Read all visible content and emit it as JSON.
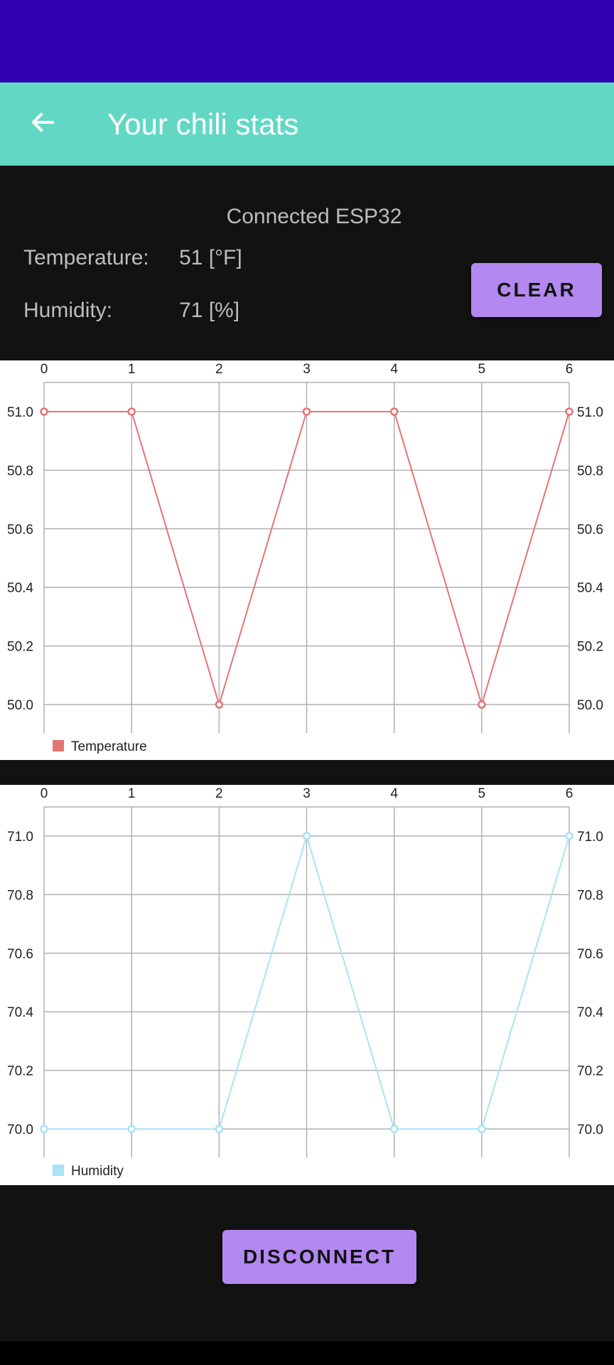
{
  "app_bar": {
    "title": "Your chili stats",
    "back_icon": "arrow-left-icon"
  },
  "status": {
    "connection": "Connected ESP32",
    "temperature_label": "Temperature:",
    "temperature_value": "51 [°F]",
    "humidity_label": "Humidity:",
    "humidity_value": "71 [%]"
  },
  "buttons": {
    "clear": "CLEAR",
    "disconnect": "DISCONNECT"
  },
  "colors": {
    "status_bar": "#3300b3",
    "app_bar": "#62d8c4",
    "background": "#121212",
    "button": "#b388f0",
    "temperature_series": "#e57373",
    "humidity_series": "#a6e4f6"
  },
  "chart_data": [
    {
      "type": "line",
      "x": [
        0,
        1,
        2,
        3,
        4,
        5,
        6
      ],
      "series": [
        {
          "name": "Temperature",
          "values": [
            51,
            51,
            50,
            51,
            51,
            50,
            51
          ],
          "color": "#e57373"
        }
      ],
      "y_ticks": [
        "50.0",
        "50.2",
        "50.4",
        "50.6",
        "50.8",
        "51.0"
      ],
      "ylim": [
        50.0,
        51.0
      ],
      "x_axis_position": "top",
      "y_axis_labels": "left and right",
      "grid": true,
      "legend": "bottom-left"
    },
    {
      "type": "line",
      "x": [
        0,
        1,
        2,
        3,
        4,
        5,
        6
      ],
      "series": [
        {
          "name": "Humidity",
          "values": [
            70,
            70,
            70,
            71,
            70,
            70,
            71
          ],
          "color": "#a6e4f6"
        }
      ],
      "y_ticks": [
        "70.0",
        "70.2",
        "70.4",
        "70.6",
        "70.8",
        "71.0"
      ],
      "ylim": [
        70.0,
        71.0
      ],
      "x_axis_position": "top",
      "y_axis_labels": "left and right",
      "grid": true,
      "legend": "bottom-left"
    }
  ]
}
